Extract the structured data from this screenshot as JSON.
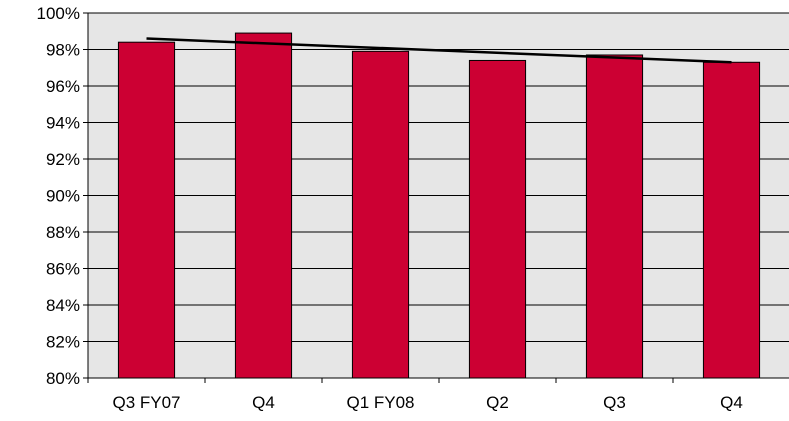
{
  "chart_data": {
    "type": "bar",
    "title": "",
    "xlabel": "",
    "ylabel": "",
    "categories": [
      "Q3 FY07",
      "Q4",
      "Q1 FY08",
      "Q2",
      "Q3",
      "Q4"
    ],
    "series": [
      {
        "values": [
          98.4,
          98.9,
          97.9,
          97.4,
          97.7,
          97.3
        ]
      }
    ],
    "trendline": {
      "start": 98.6,
      "end": 97.3
    },
    "ylim": [
      80,
      100
    ],
    "yticks": [
      80,
      82,
      84,
      86,
      88,
      90,
      92,
      94,
      96,
      98,
      100
    ],
    "ytick_labels": [
      "80%",
      "82%",
      "84%",
      "86%",
      "88%",
      "90%",
      "92%",
      "94%",
      "96%",
      "98%",
      "100%"
    ],
    "grid": true,
    "legend": "none",
    "colors": {
      "bar": "#cc0033",
      "plot_background": "#e6e6e6",
      "gridline": "#000000",
      "trendline": "#000000"
    }
  }
}
